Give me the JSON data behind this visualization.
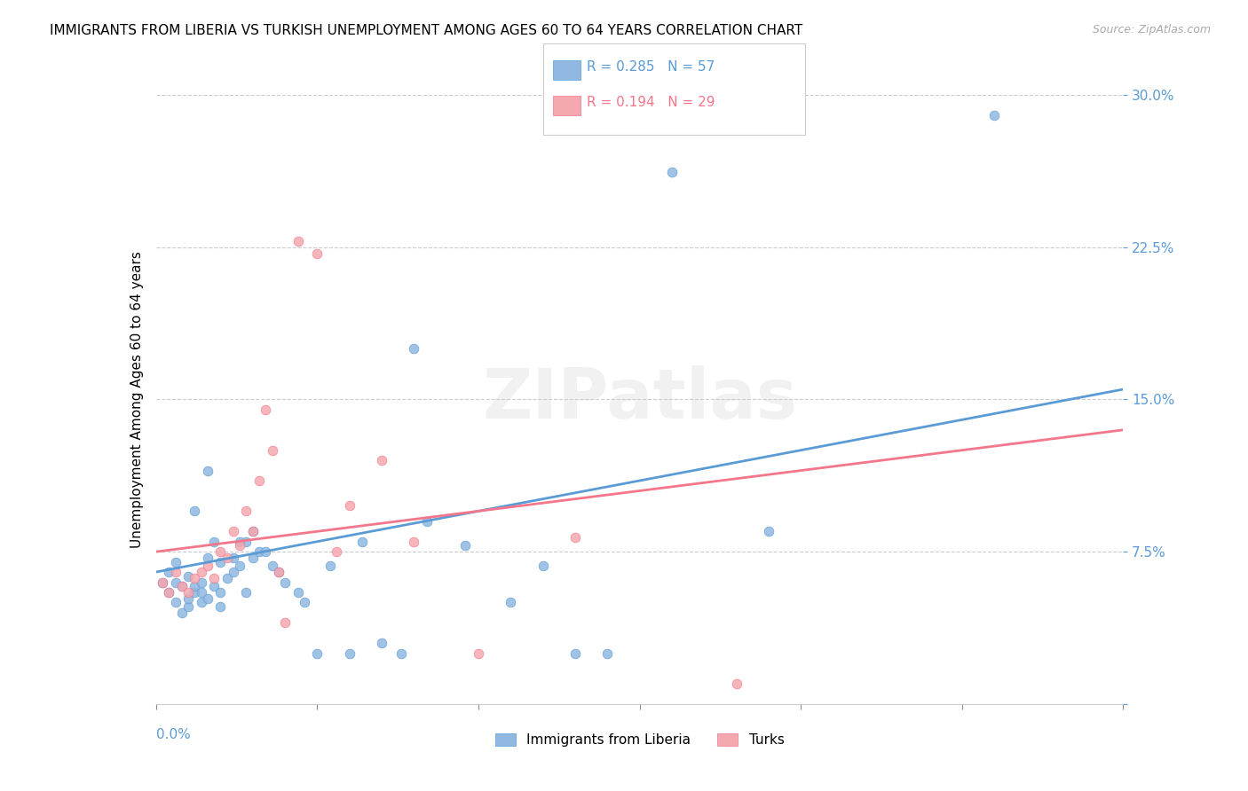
{
  "title": "IMMIGRANTS FROM LIBERIA VS TURKISH UNEMPLOYMENT AMONG AGES 60 TO 64 YEARS CORRELATION CHART",
  "source": "Source: ZipAtlas.com",
  "ylabel": "Unemployment Among Ages 60 to 64 years",
  "yticks": [
    "",
    "7.5%",
    "15.0%",
    "22.5%",
    "30.0%"
  ],
  "ytick_vals": [
    0,
    0.075,
    0.15,
    0.225,
    0.3
  ],
  "xlim": [
    0,
    0.15
  ],
  "ylim": [
    0,
    0.3
  ],
  "legend_blue_r": "0.285",
  "legend_blue_n": "57",
  "legend_pink_r": "0.194",
  "legend_pink_n": "29",
  "legend_label_blue": "Immigrants from Liberia",
  "legend_label_pink": "Turks",
  "blue_color": "#90b8e0",
  "pink_color": "#f4a8b0",
  "blue_line_color": "#5b9bd5",
  "pink_line_color": "#f4768a",
  "watermark": "ZIPatlas",
  "blue_scatter_x": [
    0.001,
    0.002,
    0.002,
    0.003,
    0.003,
    0.003,
    0.004,
    0.004,
    0.005,
    0.005,
    0.005,
    0.006,
    0.006,
    0.006,
    0.007,
    0.007,
    0.007,
    0.008,
    0.008,
    0.008,
    0.009,
    0.009,
    0.01,
    0.01,
    0.01,
    0.011,
    0.012,
    0.012,
    0.013,
    0.013,
    0.014,
    0.014,
    0.015,
    0.015,
    0.016,
    0.017,
    0.018,
    0.019,
    0.02,
    0.022,
    0.023,
    0.025,
    0.027,
    0.03,
    0.032,
    0.035,
    0.038,
    0.04,
    0.042,
    0.048,
    0.055,
    0.06,
    0.065,
    0.07,
    0.08,
    0.095,
    0.13
  ],
  "blue_scatter_y": [
    0.06,
    0.055,
    0.065,
    0.05,
    0.06,
    0.07,
    0.045,
    0.058,
    0.048,
    0.052,
    0.063,
    0.055,
    0.058,
    0.095,
    0.05,
    0.055,
    0.06,
    0.052,
    0.072,
    0.115,
    0.058,
    0.08,
    0.048,
    0.055,
    0.07,
    0.062,
    0.065,
    0.072,
    0.068,
    0.08,
    0.055,
    0.08,
    0.072,
    0.085,
    0.075,
    0.075,
    0.068,
    0.065,
    0.06,
    0.055,
    0.05,
    0.025,
    0.068,
    0.025,
    0.08,
    0.03,
    0.025,
    0.175,
    0.09,
    0.078,
    0.05,
    0.068,
    0.025,
    0.025,
    0.262,
    0.085,
    0.29
  ],
  "pink_scatter_x": [
    0.001,
    0.002,
    0.003,
    0.004,
    0.005,
    0.006,
    0.007,
    0.008,
    0.009,
    0.01,
    0.011,
    0.012,
    0.013,
    0.014,
    0.015,
    0.016,
    0.017,
    0.018,
    0.019,
    0.02,
    0.022,
    0.025,
    0.028,
    0.03,
    0.035,
    0.04,
    0.05,
    0.065,
    0.09
  ],
  "pink_scatter_y": [
    0.06,
    0.055,
    0.065,
    0.058,
    0.055,
    0.062,
    0.065,
    0.068,
    0.062,
    0.075,
    0.072,
    0.085,
    0.078,
    0.095,
    0.085,
    0.11,
    0.145,
    0.125,
    0.065,
    0.04,
    0.228,
    0.222,
    0.075,
    0.098,
    0.12,
    0.08,
    0.025,
    0.082,
    0.01
  ],
  "blue_line_x": [
    0,
    0.15
  ],
  "blue_line_y": [
    0.065,
    0.155
  ],
  "pink_line_x": [
    0,
    0.15
  ],
  "pink_line_y": [
    0.075,
    0.135
  ]
}
